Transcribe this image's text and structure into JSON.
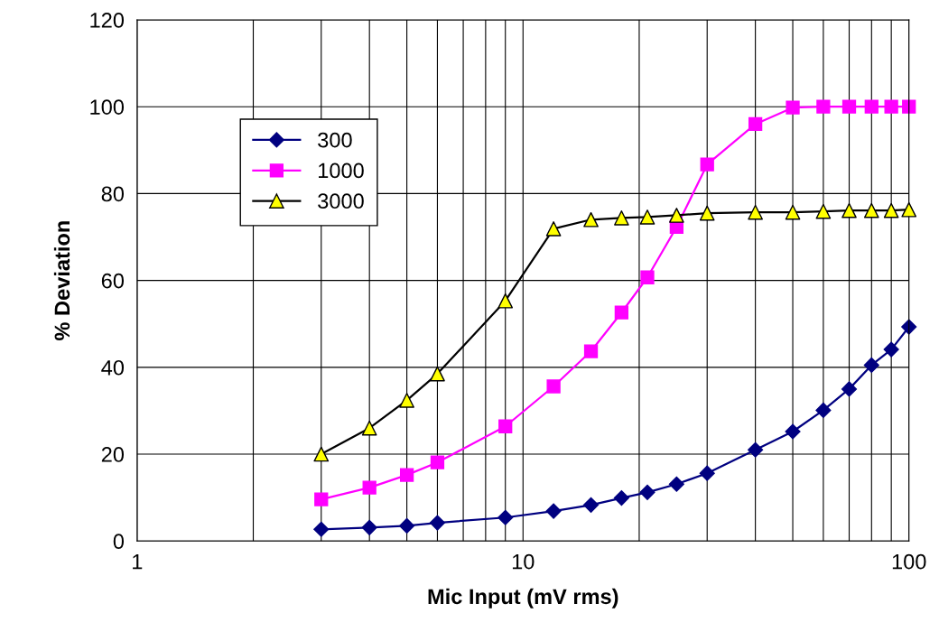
{
  "chart_data": {
    "type": "line",
    "xlabel": "Mic Input (mV rms)",
    "ylabel": "% Deviation",
    "log": "x",
    "grid": true,
    "legend": "top left",
    "line_style": "solid",
    "x": [
      3,
      4,
      5,
      6,
      9,
      12,
      15,
      18,
      21,
      25,
      30,
      40,
      50,
      60,
      70,
      80,
      90,
      100
    ],
    "series": [
      {
        "name": "300",
        "color": "#000080",
        "marker": "diamond",
        "values": [
          2.7,
          3.1,
          3.5,
          4.2,
          5.4,
          6.9,
          8.3,
          9.9,
          11.2,
          13.1,
          15.6,
          21,
          25.2,
          30.1,
          35,
          40.5,
          44.1,
          49.3
        ]
      },
      {
        "name": "1000",
        "color": "#ff00ff",
        "marker": "square",
        "values": [
          9.6,
          12.3,
          15.2,
          18.1,
          26.4,
          35.6,
          43.7,
          52.6,
          60.7,
          72.3,
          86.7,
          96,
          99.8,
          100,
          100,
          100,
          100,
          100
        ]
      },
      {
        "name": "3000",
        "color": "#000000",
        "marker": "triangle",
        "colors": [
          "#ffff00",
          "#ffff00",
          "#ffff00",
          "#ffff00",
          "#ffff00",
          "#ffff00",
          "#ffff00",
          "#ffff00",
          "#ffff00",
          "#ffff00",
          "#ffff00",
          "#ffff00",
          "#ffff00",
          "#ffff00",
          "#ffff00",
          "#ffff00",
          "#ffff00",
          "#ffff00"
        ],
        "values": [
          20,
          26,
          32.4,
          38.5,
          55.3,
          71.9,
          74,
          74.4,
          74.6,
          75,
          75.5,
          75.7,
          75.7,
          75.9,
          76.1,
          76.1,
          76.1,
          76.3
        ]
      }
    ],
    "xlim": [
      1,
      100
    ],
    "xticks": [
      1,
      {
        "value": 2,
        "label": null
      },
      {
        "value": 3,
        "label": null
      },
      {
        "value": 4,
        "label": null
      },
      {
        "value": 5,
        "label": null
      },
      {
        "value": 6,
        "label": null
      },
      {
        "value": 7,
        "label": null
      },
      {
        "value": 8,
        "label": null
      },
      {
        "value": 9,
        "label": null
      },
      10,
      {
        "value": 20,
        "label": null
      },
      {
        "value": 30,
        "label": null
      },
      {
        "value": 40,
        "label": null
      },
      {
        "value": 50,
        "label": null
      },
      {
        "value": 60,
        "label": null
      },
      {
        "value": 70,
        "label": null
      },
      {
        "value": 80,
        "label": null
      },
      {
        "value": 90,
        "label": null
      },
      100
    ],
    "ylim": [
      0,
      120
    ],
    "yticks": [
      0,
      20,
      40,
      60,
      80,
      100,
      120
    ]
  }
}
